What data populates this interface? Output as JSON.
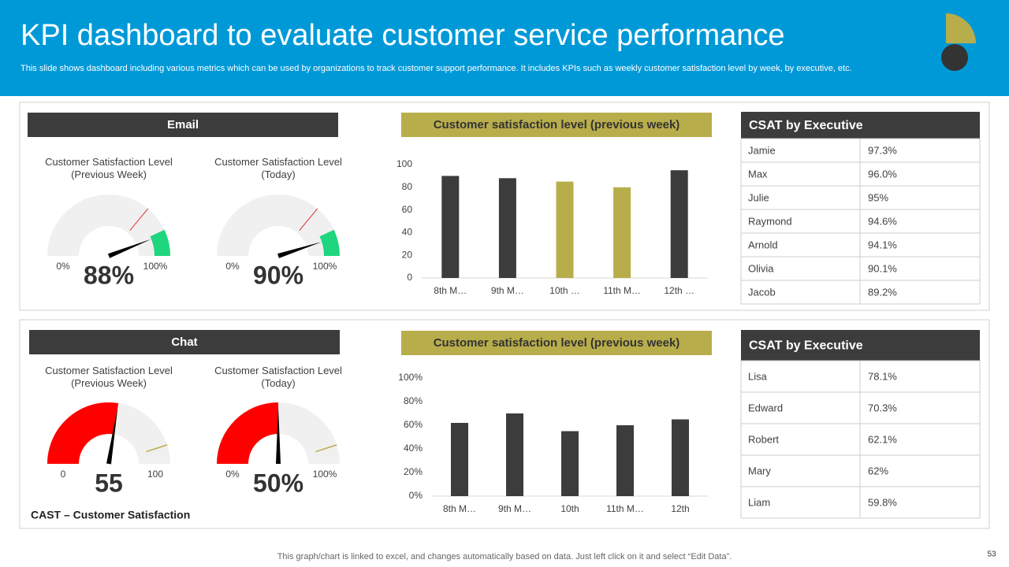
{
  "header": {
    "title": "KPI dashboard to evaluate customer service performance",
    "subtitle": "This slide shows dashboard including various metrics which can be used by organizations to track customer support performance. It includes KPIs such as weekly customer satisfaction level by week, by executive, etc."
  },
  "sections": [
    {
      "heading": "Email",
      "color": "#1fd67f",
      "gauges": [
        {
          "label": "Customer Satisfaction Level (Previous Week)",
          "value": 88,
          "value_label": "88%",
          "range": [
            {
              "value": 0,
              "label": "0%"
            },
            {
              "value": 100,
              "label": "100%"
            }
          ]
        },
        {
          "label": "Customer Satisfaction Level (Today)",
          "value": 90,
          "value_label": "90%",
          "range": [
            {
              "value": 0,
              "label": "0%"
            },
            {
              "value": 100,
              "label": "100%"
            }
          ]
        }
      ],
      "table": {
        "title": "CSAT by Executive",
        "rows": [
          [
            "Jamie",
            "97.3%"
          ],
          [
            "Max",
            "96.0%"
          ],
          [
            "Julie",
            "95%"
          ],
          [
            "Raymond",
            "94.6%"
          ],
          [
            "Arnold",
            "94.1%"
          ],
          [
            "Olivia",
            "90.1%"
          ],
          [
            "Jacob",
            "89.2%"
          ]
        ]
      }
    },
    {
      "heading": "Chat",
      "color": "#ff0000",
      "gauges": [
        {
          "label": "Customer Satisfaction Level (Previous Week)",
          "value": 55,
          "range": [
            0,
            100
          ]
        },
        {
          "label": "Customer Satisfaction Level (Today)",
          "value": 50,
          "value_label": "50%",
          "range": [
            {
              "value": 0,
              "label": "0%"
            },
            {
              "value": 100,
              "label": "100%"
            }
          ]
        }
      ],
      "table": {
        "title": "CSAT by Executive",
        "rows": [
          [
            "Lisa",
            "78.1%"
          ],
          [
            "Edward",
            "70.3%"
          ],
          [
            "Robert",
            "62.1%"
          ],
          [
            "Mary",
            "62%"
          ],
          [
            "Liam",
            "59.8%"
          ]
        ]
      },
      "note": "CAST – Customer Satisfaction"
    }
  ],
  "chart_data": [
    {
      "type": "bar",
      "title": "Customer satisfaction level (previous week)",
      "categories": [
        "8th M…",
        "9th M…",
        "10th …",
        "11th M…",
        "12th …"
      ],
      "values": [
        90,
        88,
        85,
        80,
        95
      ],
      "colors": [
        "#3c3c3c",
        "#3c3c3c",
        "#b8ad4b",
        "#b8ad4b",
        "#3c3c3c"
      ],
      "ylim": [
        0,
        100
      ],
      "yticks": [
        0,
        20,
        40,
        60,
        80,
        100
      ]
    },
    {
      "type": "bar",
      "title": "Customer satisfaction level (previous week)",
      "categories": [
        "8th M…",
        "9th M…",
        "10th",
        "11th M…",
        "12th"
      ],
      "values": [
        62,
        70,
        55,
        60,
        65
      ],
      "colors": [
        "#3c3c3c",
        "#3c3c3c",
        "#3c3c3c",
        "#3c3c3c",
        "#3c3c3c"
      ],
      "ylim": [
        0,
        100
      ],
      "yticks": [
        {
          "value": 0,
          "label": "0%"
        },
        {
          "value": 20,
          "label": "20%"
        },
        {
          "value": 40,
          "label": "40%"
        },
        {
          "value": 60,
          "label": "60%"
        },
        {
          "value": 80,
          "label": "80%"
        },
        {
          "value": 100,
          "label": "100%"
        }
      ]
    }
  ],
  "footnote": "This graph/chart is linked to excel, and changes automatically based on data. Just left click on it and select “Edit Data”.",
  "page_number": "53"
}
